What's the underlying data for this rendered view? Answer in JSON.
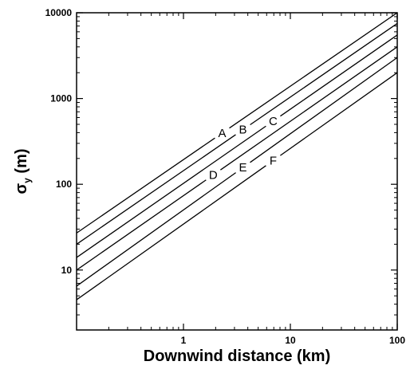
{
  "chart_data": {
    "type": "line",
    "title": "",
    "xlabel": "Downwind distance (km)",
    "ylabel": {
      "main": "σ",
      "sub": "y",
      "unit": " (m)"
    },
    "x_scale": "log",
    "y_scale": "log",
    "xlim": [
      0.1,
      100
    ],
    "ylim": [
      2,
      10000
    ],
    "x_ticks": [
      {
        "value": 1,
        "label": "1"
      },
      {
        "value": 10,
        "label": "10"
      },
      {
        "value": 100,
        "label": "100"
      }
    ],
    "y_ticks": [
      {
        "value": 10,
        "label": "10"
      },
      {
        "value": 100,
        "label": "100"
      },
      {
        "value": 1000,
        "label": "1000"
      },
      {
        "value": 10000,
        "label": "10000"
      }
    ],
    "grid": false,
    "legend": "none",
    "line_color": "#000000",
    "series": [
      {
        "name": "A",
        "x": [
          0.1,
          100
        ],
        "y": [
          27,
          10000
        ],
        "label_at": {
          "x": 2.3,
          "y": 400
        }
      },
      {
        "name": "B",
        "x": [
          0.1,
          100
        ],
        "y": [
          20,
          7500
        ],
        "label_at": {
          "x": 3.6,
          "y": 470
        }
      },
      {
        "name": "C",
        "x": [
          0.1,
          100
        ],
        "y": [
          14,
          5500
        ],
        "label_at": {
          "x": 6.9,
          "y": 580
        }
      },
      {
        "name": "D",
        "x": [
          0.1,
          100
        ],
        "y": [
          10,
          4000
        ],
        "label_at": {
          "x": 1.9,
          "y": 100
        }
      },
      {
        "name": "E",
        "x": [
          0.1,
          100
        ],
        "y": [
          6.5,
          3000
        ],
        "label_at": {
          "x": 3.6,
          "y": 125
        }
      },
      {
        "name": "F",
        "x": [
          0.1,
          100
        ],
        "y": [
          4.5,
          2000
        ],
        "label_at": {
          "x": 6.9,
          "y": 155
        }
      }
    ]
  }
}
